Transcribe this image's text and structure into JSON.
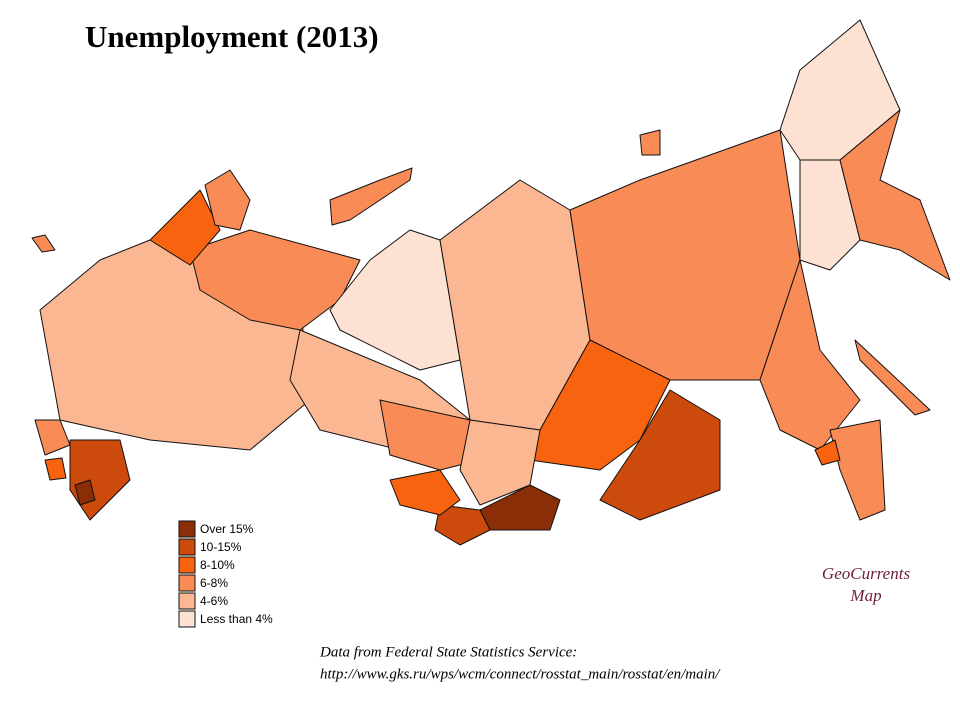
{
  "title": "Unemployment (2013)",
  "legend": {
    "items": [
      {
        "label": "Over  15%",
        "color": "#8a2e07"
      },
      {
        "label": "10-15%",
        "color": "#cc4a0c"
      },
      {
        "label": "8-10%",
        "color": "#f8630f"
      },
      {
        "label": "6-8%",
        "color": "#f98c56"
      },
      {
        "label": "4-6%",
        "color": "#fbb792"
      },
      {
        "label": "Less than 4%",
        "color": "#fde2d4"
      }
    ]
  },
  "brand": {
    "line1": "GeoCurrents",
    "line2": "Map"
  },
  "source": {
    "line1": "Data from Federal State Statistics Service:",
    "line2": "http://www.gks.ru/wps/wcm/connect/rosstat_main/rosstat/en/main/"
  }
}
